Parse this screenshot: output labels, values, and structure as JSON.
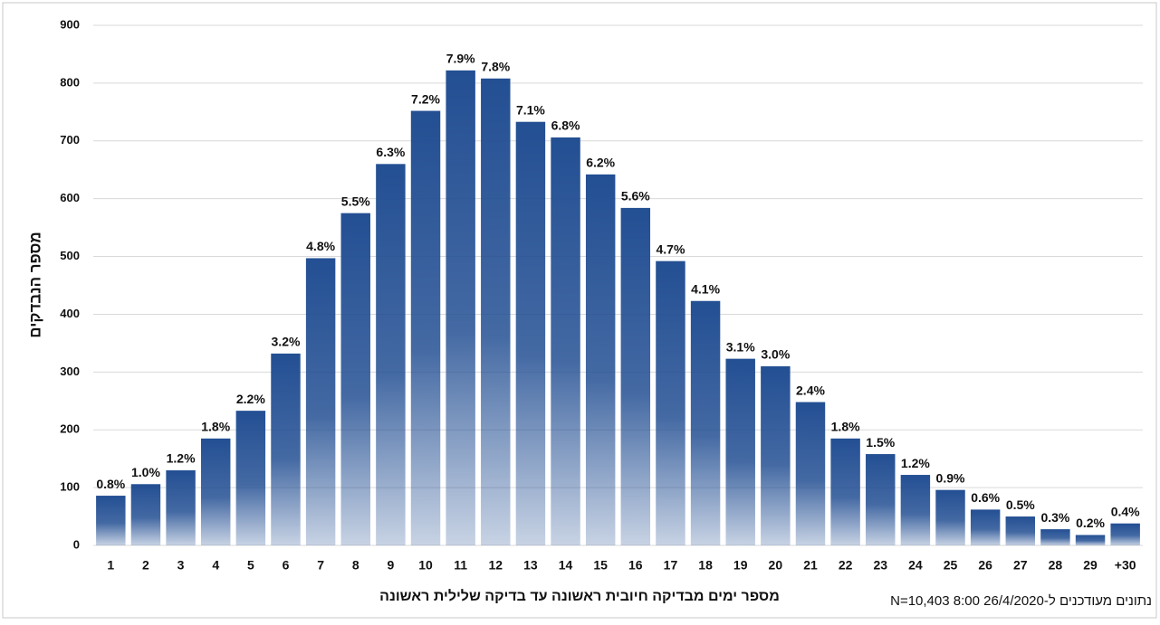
{
  "chart_data": {
    "type": "bar",
    "x_label": "מספר ימים מבדיקה חיובית ראשונה עד בדיקה שלילית ראשונה",
    "y_label": "מספר הנבדקים",
    "note": "נתונים מעודכנים ל-26/4/2020 8:00 N=10,403",
    "categories": [
      "1",
      "2",
      "3",
      "4",
      "5",
      "6",
      "7",
      "8",
      "9",
      "10",
      "11",
      "12",
      "13",
      "14",
      "15",
      "16",
      "17",
      "18",
      "19",
      "20",
      "21",
      "22",
      "23",
      "24",
      "25",
      "26",
      "27",
      "28",
      "29",
      "+30"
    ],
    "values": [
      86,
      106,
      130,
      185,
      233,
      332,
      497,
      575,
      660,
      752,
      822,
      808,
      733,
      706,
      642,
      584,
      492,
      423,
      323,
      310,
      248,
      185,
      158,
      122,
      96,
      62,
      50,
      28,
      18,
      38
    ],
    "percent_labels": [
      "0.8%",
      "1.0%",
      "1.2%",
      "1.8%",
      "2.2%",
      "3.2%",
      "4.8%",
      "5.5%",
      "6.3%",
      "7.2%",
      "7.9%",
      "7.8%",
      "7.1%",
      "6.8%",
      "6.2%",
      "5.6%",
      "4.7%",
      "4.1%",
      "3.1%",
      "3.0%",
      "2.4%",
      "1.8%",
      "1.5%",
      "1.2%",
      "0.9%",
      "0.6%",
      "0.5%",
      "0.3%",
      "0.2%",
      "0.4%"
    ],
    "color": "#234f93",
    "ylim": [
      0,
      900
    ],
    "yticks": [
      0,
      100,
      200,
      300,
      400,
      500,
      600,
      700,
      800,
      900
    ],
    "grid": true
  }
}
